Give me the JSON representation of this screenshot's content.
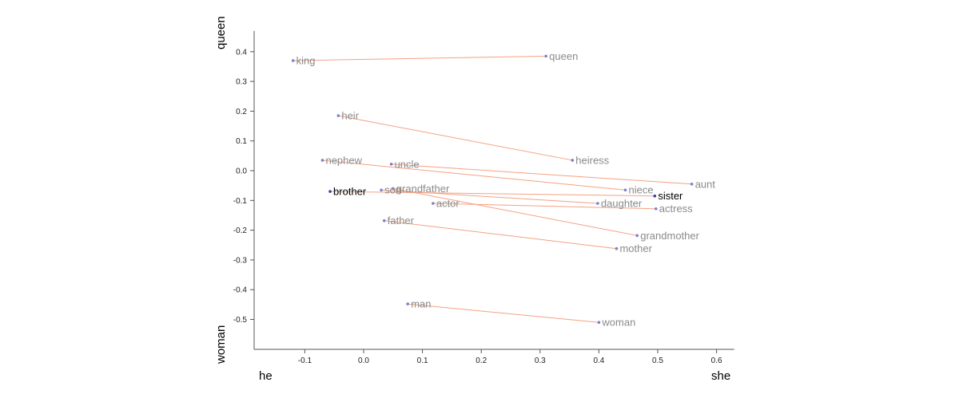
{
  "chart_data": {
    "type": "scatter",
    "x_axis": {
      "left_label": "he",
      "right_label": "she",
      "range": [
        -0.185,
        0.63
      ],
      "ticks": [
        -0.1,
        0.0,
        0.1,
        0.2,
        0.3,
        0.4,
        0.5,
        0.6
      ]
    },
    "y_axis": {
      "top_label": "queen",
      "bottom_label": "woman",
      "range": [
        -0.6,
        0.47
      ],
      "ticks": [
        0.4,
        0.3,
        0.2,
        0.1,
        0.0,
        -0.1,
        -0.2,
        -0.3,
        -0.4,
        -0.5
      ]
    },
    "point_color": "#7b7fd6",
    "line_color": "#f5a182",
    "label_color": "#8a8a8a",
    "highlight_color": "#000000",
    "points": [
      {
        "word": "king",
        "x": -0.12,
        "y": 0.37
      },
      {
        "word": "queen",
        "x": 0.31,
        "y": 0.385
      },
      {
        "word": "heir",
        "x": -0.043,
        "y": 0.185
      },
      {
        "word": "heiress",
        "x": 0.355,
        "y": 0.035
      },
      {
        "word": "nephew",
        "x": -0.07,
        "y": 0.035
      },
      {
        "word": "aunt",
        "x": 0.558,
        "y": -0.045
      },
      {
        "word": "uncle",
        "x": 0.047,
        "y": 0.022
      },
      {
        "word": "niece",
        "x": 0.445,
        "y": -0.065
      },
      {
        "word": "brother",
        "x": -0.057,
        "y": -0.07,
        "highlight": true
      },
      {
        "word": "sister",
        "x": 0.495,
        "y": -0.085,
        "highlight": true
      },
      {
        "word": "son",
        "x": 0.03,
        "y": -0.065
      },
      {
        "word": "daughter",
        "x": 0.398,
        "y": -0.11
      },
      {
        "word": "grandfather",
        "x": 0.05,
        "y": -0.06
      },
      {
        "word": "grandmother",
        "x": 0.465,
        "y": -0.218
      },
      {
        "word": "actor",
        "x": 0.118,
        "y": -0.11
      },
      {
        "word": "actress",
        "x": 0.497,
        "y": -0.128
      },
      {
        "word": "father",
        "x": 0.035,
        "y": -0.168
      },
      {
        "word": "mother",
        "x": 0.43,
        "y": -0.262
      },
      {
        "word": "man",
        "x": 0.075,
        "y": -0.448
      },
      {
        "word": "woman",
        "x": 0.4,
        "y": -0.51
      }
    ],
    "pairs": [
      [
        "king",
        "queen"
      ],
      [
        "heir",
        "heiress"
      ],
      [
        "nephew",
        "niece"
      ],
      [
        "uncle",
        "aunt"
      ],
      [
        "brother",
        "sister"
      ],
      [
        "son",
        "daughter"
      ],
      [
        "grandfather",
        "grandmother"
      ],
      [
        "actor",
        "actress"
      ],
      [
        "father",
        "mother"
      ],
      [
        "man",
        "woman"
      ]
    ]
  }
}
